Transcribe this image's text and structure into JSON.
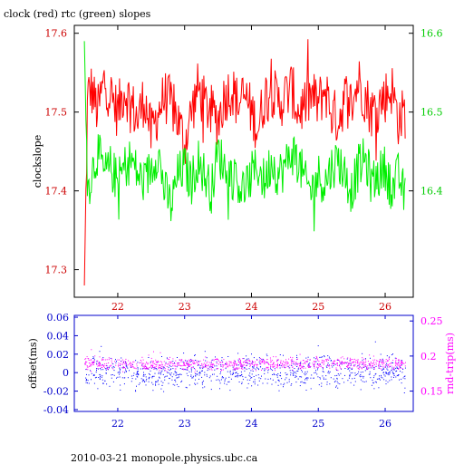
{
  "title": "clock (red) rtc (green) slopes",
  "footer": "2010-03-21 monopole.physics.ubc.ca",
  "chart_data": [
    {
      "type": "line",
      "title": "clock (red) rtc (green) slopes",
      "ylabel": "clockslope",
      "y2label": "",
      "xlim": [
        21.35,
        26.42
      ],
      "ylim": [
        17.265,
        17.61
      ],
      "y2lim": [
        16.265,
        16.61
      ],
      "xticks": [
        22,
        23,
        24,
        25,
        26
      ],
      "yticks": [
        17.3,
        17.4,
        17.5,
        17.6
      ],
      "y2ticks": [
        16.4,
        16.5,
        16.6
      ],
      "colors": {
        "left_axis": "#cc0000",
        "right_axis": "#00cc00",
        "frame": "#000000"
      },
      "series": [
        {
          "name": "clock",
          "color": "#ff0000",
          "axis": "left",
          "x": [
            21.5,
            21.55,
            21.6,
            21.7,
            21.8,
            21.9,
            22.0,
            22.1,
            22.2,
            22.3,
            22.4,
            22.5,
            22.6,
            22.7,
            22.8,
            22.9,
            23.0,
            23.1,
            23.2,
            23.3,
            23.4,
            23.5,
            23.6,
            23.7,
            23.8,
            23.9,
            24.0,
            24.1,
            24.2,
            24.3,
            24.4,
            24.5,
            24.6,
            24.7,
            24.8,
            24.9,
            25.0,
            25.1,
            25.2,
            25.3,
            25.4,
            25.5,
            25.6,
            25.7,
            25.8,
            25.9,
            26.0,
            26.1,
            26.2,
            26.3
          ],
          "y": [
            17.28,
            17.52,
            17.53,
            17.5,
            17.54,
            17.52,
            17.5,
            17.53,
            17.51,
            17.49,
            17.52,
            17.47,
            17.5,
            17.52,
            17.51,
            17.49,
            17.46,
            17.5,
            17.53,
            17.51,
            17.5,
            17.49,
            17.52,
            17.53,
            17.51,
            17.52,
            17.5,
            17.48,
            17.52,
            17.53,
            17.51,
            17.52,
            17.53,
            17.5,
            17.51,
            17.52,
            17.51,
            17.53,
            17.5,
            17.49,
            17.52,
            17.51,
            17.54,
            17.52,
            17.5,
            17.51,
            17.52,
            17.53,
            17.49,
            17.5
          ]
        },
        {
          "name": "rtc",
          "color": "#00ee00",
          "axis": "right",
          "x": [
            21.5,
            21.55,
            21.6,
            21.7,
            21.8,
            21.9,
            22.0,
            22.1,
            22.2,
            22.3,
            22.4,
            22.5,
            22.6,
            22.7,
            22.8,
            22.9,
            23.0,
            23.1,
            23.2,
            23.3,
            23.4,
            23.5,
            23.6,
            23.7,
            23.8,
            23.9,
            24.0,
            24.1,
            24.2,
            24.3,
            24.4,
            24.5,
            24.6,
            24.7,
            24.8,
            24.9,
            25.0,
            25.1,
            25.2,
            25.3,
            25.4,
            25.5,
            25.6,
            25.7,
            25.8,
            25.9,
            26.0,
            26.1,
            26.2,
            26.3
          ],
          "y": [
            16.59,
            16.4,
            16.42,
            16.45,
            16.42,
            16.43,
            16.41,
            16.43,
            16.44,
            16.42,
            16.41,
            16.43,
            16.45,
            16.4,
            16.38,
            16.42,
            16.43,
            16.41,
            16.44,
            16.42,
            16.4,
            16.45,
            16.43,
            16.42,
            16.41,
            16.4,
            16.42,
            16.43,
            16.41,
            16.44,
            16.42,
            16.43,
            16.45,
            16.44,
            16.41,
            16.4,
            16.42,
            16.41,
            16.43,
            16.44,
            16.42,
            16.4,
            16.43,
            16.44,
            16.41,
            16.42,
            16.43,
            16.4,
            16.42,
            16.39
          ]
        }
      ]
    },
    {
      "type": "scatter",
      "ylabel": "offset(ms)",
      "y2label": "rnd-trip(ms)",
      "xlim": [
        21.35,
        26.42
      ],
      "ylim": [
        -0.042,
        0.062
      ],
      "y2lim": [
        0.121,
        0.258
      ],
      "xticks": [
        22,
        23,
        24,
        25,
        26
      ],
      "yticks": [
        -0.04,
        -0.02,
        0,
        0.02,
        0.04,
        0.06
      ],
      "ytick_labels": [
        "-0.04",
        "-0.02",
        "0",
        "0.02",
        "0.04",
        "0.06"
      ],
      "y2ticks": [
        0.15,
        0.2,
        0.25
      ],
      "colors": {
        "left_axis": "#0000cc",
        "right_axis": "#ff00ff",
        "frame": "#0000cc"
      },
      "series": [
        {
          "name": "offset",
          "color": "#0000ff",
          "axis": "left",
          "x": [
            21.5,
            22.0,
            22.5,
            23.0,
            23.5,
            24.0,
            24.5,
            25.0,
            25.5,
            26.0,
            26.3
          ],
          "y": [
            0.0,
            0.002,
            -0.002,
            0.001,
            0.0,
            0.002,
            -0.001,
            0.001,
            0.0,
            0.002,
            -0.001
          ],
          "spread": 0.012
        },
        {
          "name": "rnd-trip",
          "color": "#ff00ff",
          "axis": "right",
          "x": [
            21.5,
            22.0,
            22.5,
            23.0,
            23.5,
            24.0,
            24.5,
            25.0,
            25.5,
            26.0,
            26.3
          ],
          "y": [
            0.19,
            0.19,
            0.188,
            0.189,
            0.19,
            0.19,
            0.189,
            0.19,
            0.191,
            0.19,
            0.189
          ],
          "spread": 0.006
        }
      ]
    }
  ]
}
